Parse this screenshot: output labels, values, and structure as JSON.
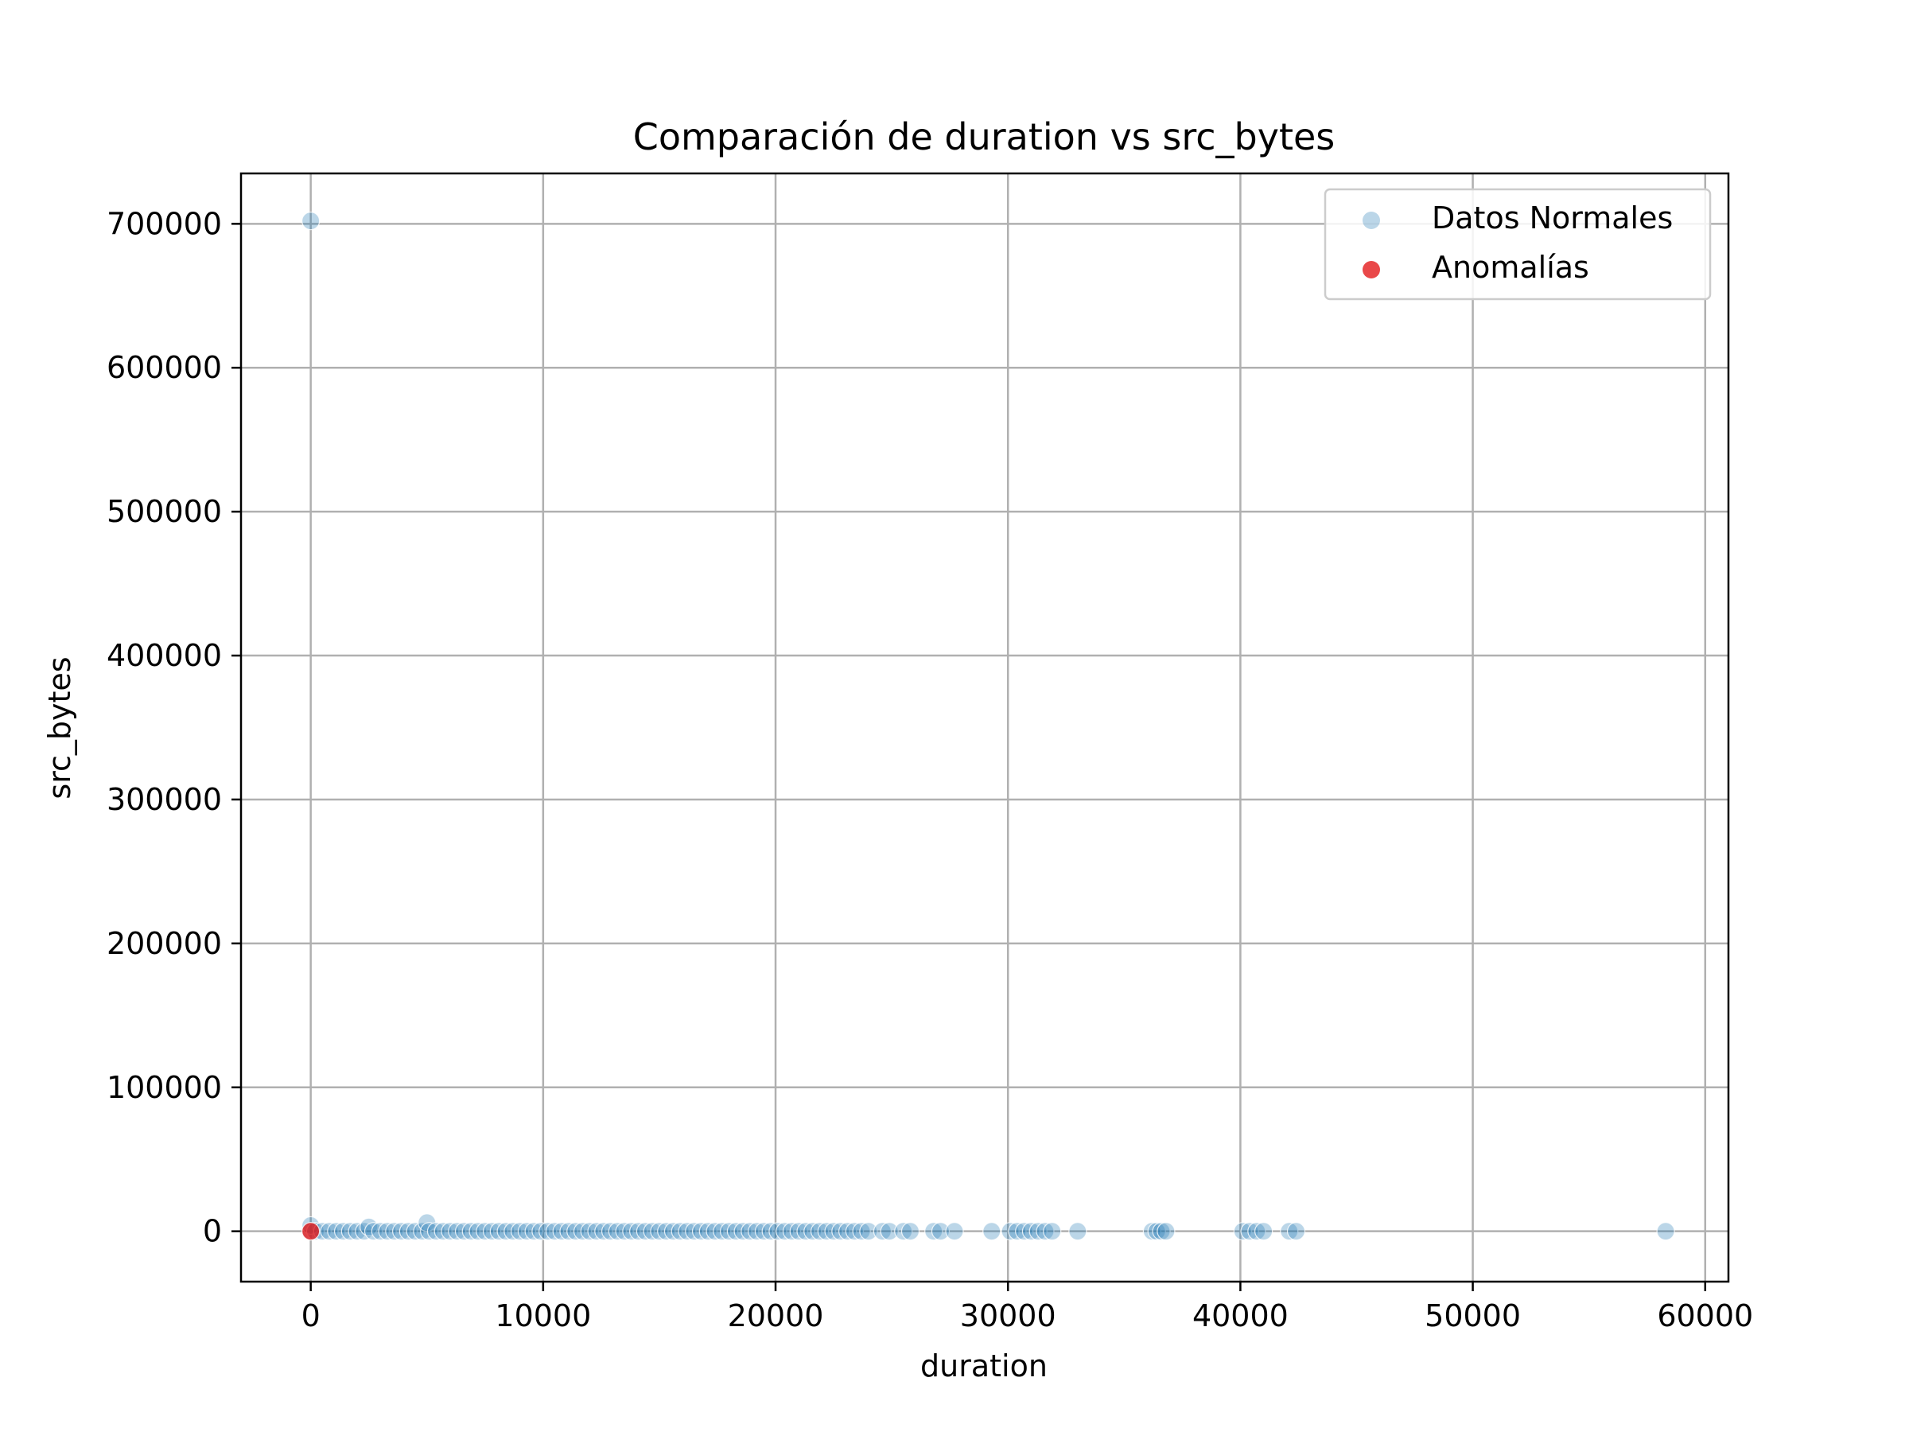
{
  "chart_data": {
    "type": "scatter",
    "title": "Comparación de duration vs src_bytes",
    "xlabel": "duration",
    "ylabel": "src_bytes",
    "xlim": [
      -3000,
      61000
    ],
    "ylim": [
      -35000,
      735000
    ],
    "xticks": [
      0,
      10000,
      20000,
      30000,
      40000,
      50000,
      60000
    ],
    "yticks": [
      0,
      100000,
      200000,
      300000,
      400000,
      500000,
      600000,
      700000
    ],
    "grid": true,
    "legend_position": "top-right",
    "series": [
      {
        "name": "Datos Normales",
        "color": "#1f77b4",
        "points": [
          [
            0,
            0
          ],
          [
            0,
            702000
          ],
          [
            0,
            4000
          ],
          [
            200,
            0
          ],
          [
            500,
            0
          ],
          [
            800,
            0
          ],
          [
            1100,
            0
          ],
          [
            1400,
            0
          ],
          [
            1700,
            0
          ],
          [
            2000,
            0
          ],
          [
            2300,
            0
          ],
          [
            2500,
            3000
          ],
          [
            2700,
            0
          ],
          [
            3000,
            0
          ],
          [
            3300,
            0
          ],
          [
            3600,
            0
          ],
          [
            3900,
            0
          ],
          [
            4200,
            0
          ],
          [
            4500,
            0
          ],
          [
            4800,
            0
          ],
          [
            5000,
            6000
          ],
          [
            5100,
            0
          ],
          [
            5400,
            0
          ],
          [
            5700,
            0
          ],
          [
            6000,
            0
          ],
          [
            6300,
            0
          ],
          [
            6600,
            0
          ],
          [
            6900,
            0
          ],
          [
            7200,
            0
          ],
          [
            7500,
            0
          ],
          [
            7800,
            0
          ],
          [
            8100,
            0
          ],
          [
            8400,
            0
          ],
          [
            8700,
            0
          ],
          [
            9000,
            0
          ],
          [
            9300,
            0
          ],
          [
            9600,
            0
          ],
          [
            9900,
            0
          ],
          [
            10200,
            0
          ],
          [
            10500,
            0
          ],
          [
            10800,
            0
          ],
          [
            11100,
            0
          ],
          [
            11400,
            0
          ],
          [
            11700,
            0
          ],
          [
            12000,
            0
          ],
          [
            12300,
            0
          ],
          [
            12600,
            0
          ],
          [
            12900,
            0
          ],
          [
            13200,
            0
          ],
          [
            13500,
            0
          ],
          [
            13800,
            0
          ],
          [
            14100,
            0
          ],
          [
            14400,
            0
          ],
          [
            14700,
            0
          ],
          [
            15000,
            0
          ],
          [
            15300,
            0
          ],
          [
            15600,
            0
          ],
          [
            15900,
            0
          ],
          [
            16200,
            0
          ],
          [
            16500,
            0
          ],
          [
            16800,
            0
          ],
          [
            17100,
            0
          ],
          [
            17400,
            0
          ],
          [
            17700,
            0
          ],
          [
            18000,
            0
          ],
          [
            18300,
            0
          ],
          [
            18600,
            0
          ],
          [
            18900,
            0
          ],
          [
            19200,
            0
          ],
          [
            19500,
            0
          ],
          [
            19800,
            0
          ],
          [
            20100,
            0
          ],
          [
            20400,
            0
          ],
          [
            20700,
            0
          ],
          [
            21000,
            0
          ],
          [
            21300,
            0
          ],
          [
            21600,
            0
          ],
          [
            21900,
            0
          ],
          [
            22200,
            0
          ],
          [
            22500,
            0
          ],
          [
            22800,
            0
          ],
          [
            23100,
            0
          ],
          [
            23400,
            0
          ],
          [
            23700,
            0
          ],
          [
            24000,
            0
          ],
          [
            24600,
            0
          ],
          [
            24900,
            0
          ],
          [
            25500,
            0
          ],
          [
            25800,
            0
          ],
          [
            26800,
            0
          ],
          [
            27100,
            0
          ],
          [
            27700,
            0
          ],
          [
            29300,
            0
          ],
          [
            30100,
            0
          ],
          [
            30400,
            0
          ],
          [
            30700,
            0
          ],
          [
            31000,
            0
          ],
          [
            31300,
            0
          ],
          [
            31600,
            0
          ],
          [
            31900,
            0
          ],
          [
            33000,
            0
          ],
          [
            36200,
            0
          ],
          [
            36400,
            0
          ],
          [
            36600,
            0
          ],
          [
            36800,
            0
          ],
          [
            40100,
            0
          ],
          [
            40400,
            0
          ],
          [
            40700,
            0
          ],
          [
            41000,
            0
          ],
          [
            42100,
            0
          ],
          [
            42400,
            0
          ],
          [
            58300,
            0
          ]
        ]
      },
      {
        "name": "Anomalías",
        "color": "#e41a1c",
        "points": [
          [
            0,
            0
          ]
        ]
      }
    ]
  }
}
